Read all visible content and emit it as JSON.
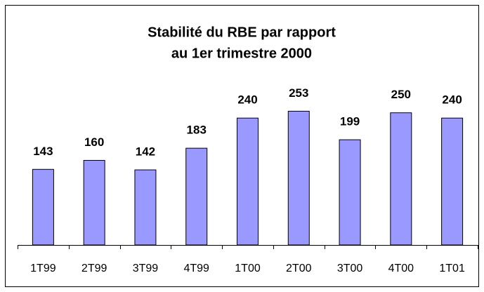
{
  "chart_data": {
    "type": "bar",
    "title": [
      "Stabilité du RBE par rapport",
      "au 1er trimestre 2000"
    ],
    "categories": [
      "1T99",
      "2T99",
      "3T99",
      "4T99",
      "1T00",
      "2T00",
      "3T00",
      "4T00",
      "1T01"
    ],
    "values": [
      143,
      160,
      142,
      183,
      240,
      253,
      199,
      250,
      240
    ],
    "color": "#9999ff",
    "ylim": [
      0,
      300
    ]
  }
}
